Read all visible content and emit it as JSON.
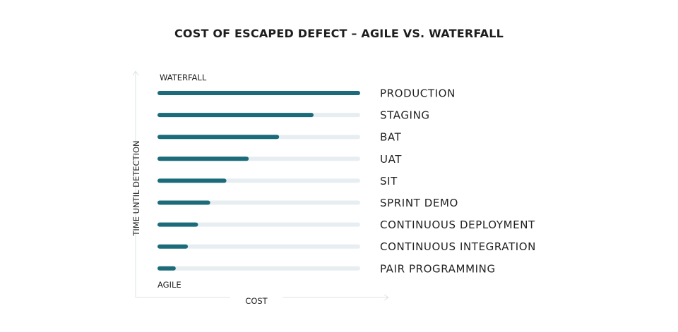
{
  "chart_data": {
    "type": "bar",
    "orientation": "horizontal",
    "title": "COST OF ESCAPED DEFECT – AGILE VS. WATERFALL",
    "xlabel": "COST",
    "ylabel": "TIME UNTIL DETECTION",
    "top_label": "WATERFALL",
    "bottom_label": "AGILE",
    "xlim": [
      0,
      100
    ],
    "grid": false,
    "legend": "none",
    "categories": [
      "PRODUCTION",
      "STAGING",
      "BAT",
      "UAT",
      "SIT",
      "SPRINT DEMO",
      "CONTINUOUS DEPLOYMENT",
      "CONTINUOUS INTEGRATION",
      "PAIR PROGRAMMING"
    ],
    "values": [
      100,
      77,
      60,
      45,
      34,
      26,
      20,
      15,
      9
    ],
    "colors": {
      "bar": "#1b6b7b",
      "track": "#e7eef2",
      "axis": "#dde3e7",
      "text": "#222222"
    }
  }
}
